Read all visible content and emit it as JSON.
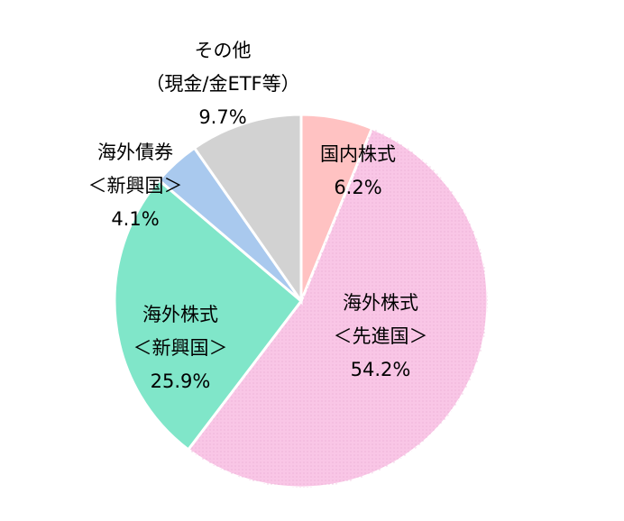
{
  "chart_data": {
    "type": "pie",
    "categories": [
      [
        "国内株式"
      ],
      [
        "海外株式",
        "＜先進国＞"
      ],
      [
        "海外株式",
        "＜新興国＞"
      ],
      [
        "海外債券",
        "＜新興国＞"
      ],
      [
        "その他",
        "（現金/金ETF等）"
      ]
    ],
    "values": [
      6.2,
      54.2,
      25.9,
      4.1,
      9.7
    ],
    "value_labels": [
      "6.2%",
      "54.2%",
      "25.9%",
      "4.1%",
      "9.7%"
    ],
    "colors": [
      "#ffc2c2",
      "#f9c6e6",
      "#80e6c9",
      "#a9c9ee",
      "#d2d2d2"
    ]
  }
}
